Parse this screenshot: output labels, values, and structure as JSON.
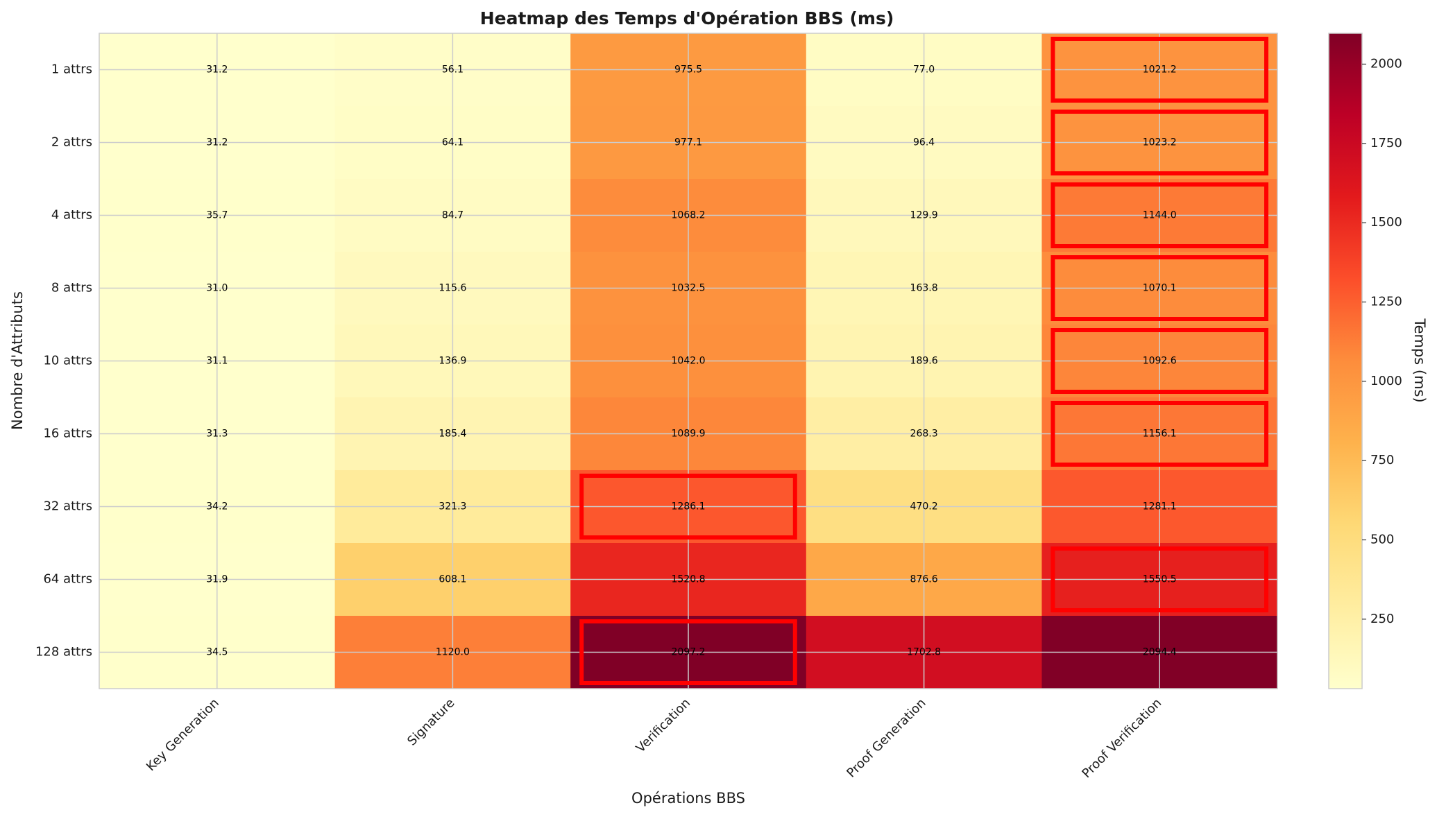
{
  "chart_data": {
    "type": "heatmap",
    "title": "Heatmap des Temps d'Opération BBS (ms)",
    "x_label": "Opérations BBS",
    "y_label": "Nombre d'Attributs",
    "colorbar_label": "Temps (ms)",
    "colormap": "YlOrRd",
    "x_categories": [
      "Key Generation",
      "Signature",
      "Verification",
      "Proof Generation",
      "Proof Verification"
    ],
    "y_categories": [
      "1 attrs",
      "2 attrs",
      "4 attrs",
      "8 attrs",
      "10 attrs",
      "16 attrs",
      "32 attrs",
      "64 attrs",
      "128 attrs"
    ],
    "values": [
      [
        31.2,
        56.1,
        975.5,
        77.0,
        1021.2
      ],
      [
        31.2,
        64.1,
        977.1,
        96.4,
        1023.2
      ],
      [
        35.7,
        84.7,
        1068.2,
        129.9,
        1144.0
      ],
      [
        31.0,
        115.6,
        1032.5,
        163.8,
        1070.1
      ],
      [
        31.1,
        136.9,
        1042.0,
        189.6,
        1092.6
      ],
      [
        31.3,
        185.4,
        1089.9,
        268.3,
        1156.1
      ],
      [
        34.2,
        321.3,
        1286.1,
        470.2,
        1281.1
      ],
      [
        31.9,
        608.1,
        1520.8,
        876.6,
        1550.5
      ],
      [
        34.5,
        1120.0,
        2097.2,
        1702.8,
        2094.4
      ]
    ],
    "value_labels": [
      [
        "31.2",
        "56.1",
        "975.5",
        "77.0",
        "1021.2"
      ],
      [
        "31.2",
        "64.1",
        "977.1",
        "96.4",
        "1023.2"
      ],
      [
        "35.7",
        "84.7",
        "1068.2",
        "129.9",
        "1144.0"
      ],
      [
        "31.0",
        "115.6",
        "1032.5",
        "163.8",
        "1070.1"
      ],
      [
        "31.1",
        "136.9",
        "1042.0",
        "189.6",
        "1092.6"
      ],
      [
        "31.3",
        "185.4",
        "1089.9",
        "268.3",
        "1156.1"
      ],
      [
        "34.2",
        "321.3",
        "1286.1",
        "470.2",
        "1281.1"
      ],
      [
        "31.9",
        "608.1",
        "1520.8",
        "876.6",
        "1550.5"
      ],
      [
        "34.5",
        "1120.0",
        "2097.2",
        "1702.8",
        "2094.4"
      ]
    ],
    "clim": [
      31.0,
      2097.2
    ],
    "cticks": [
      250,
      500,
      750,
      1000,
      1250,
      1500,
      1750,
      2000
    ],
    "highlight_row_max": true,
    "highlight_color": "#ff0000",
    "grid": true
  }
}
